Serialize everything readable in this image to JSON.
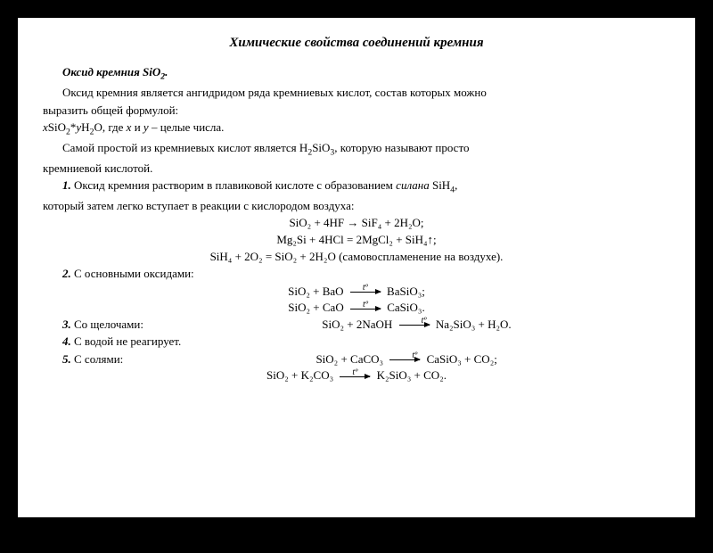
{
  "title": "Химические свойства соединений кремния",
  "heading1": "Оксид кремния SiO",
  "heading1_sub": "2",
  "heading1_dot": ".",
  "intro1a": "Оксид кремния является ангидридом ряда кремниевых кислот, состав которых можно",
  "intro1b": "выразить общей формулой:",
  "generic_formula_prefix": "x",
  "generic_formula_mid": "SiO",
  "generic_formula_s1": "2",
  "generic_formula_star": "*",
  "generic_formula_y": "y",
  "generic_formula_h2o": "H",
  "generic_formula_h2o_s": "2",
  "generic_formula_h2o_o": "O, где ",
  "generic_formula_xy": "x",
  "generic_formula_and": " и ",
  "generic_formula_yy": "y",
  "generic_formula_tail": " – целые числа.",
  "simple1a": "Самой простой из кремниевых кислот является H",
  "simple1a_s": "2",
  "simple1a_mid": "SiO",
  "simple1a_s2": "3",
  "simple1a_b": ", которую называют просто",
  "simple1c": "кремниевой кислотой.",
  "p1_num": "1.",
  "p1a": " Оксид кремния растворим в плавиковой кислоте с образованием ",
  "p1_ital": "силана",
  "p1b": " SiH",
  "p1b_s": "4",
  "p1b_tail": ",",
  "p1c": "который затем легко вступает в реакции с кислородом воздуха:",
  "eq1": "SiO₂ + 4HF → SiF₄ + 2H₂O;",
  "eq2": "Mg₂Si + 4HCl = 2MgCl₂ + SiH₄↑;",
  "eq3": "SiH₄ + 2O₂ = SiO₂ + 2H₂O (самовоспламенение на воздухе).",
  "p2_num": "2.",
  "p2_text": " С основными оксидами:",
  "eq4_left": "SiO₂ + BaO ",
  "eq4_right": " BaSiO₃;",
  "eq5_left": "SiO₂ + CaO ",
  "eq5_right": " CaSiO₃.",
  "p3_num": "3.",
  "p3_text": " Со щелочами:",
  "eq6_left": "SiO₂ + 2NaOH ",
  "eq6_right": " Na₂SiO₃ + H₂O.",
  "p4_num": "4.",
  "p4_text": " С водой не реагирует.",
  "p5_num": "5.",
  "p5_text": " С солями:",
  "eq7_left": "SiO₂ + CaCO₃ ",
  "eq7_right": " CaSiO₃ + CO₂;",
  "eq8_left": "SiO₂ + K₂CO₃ ",
  "eq8_right": " K₂SiO₃ + CO₂.",
  "t_label": "tº"
}
